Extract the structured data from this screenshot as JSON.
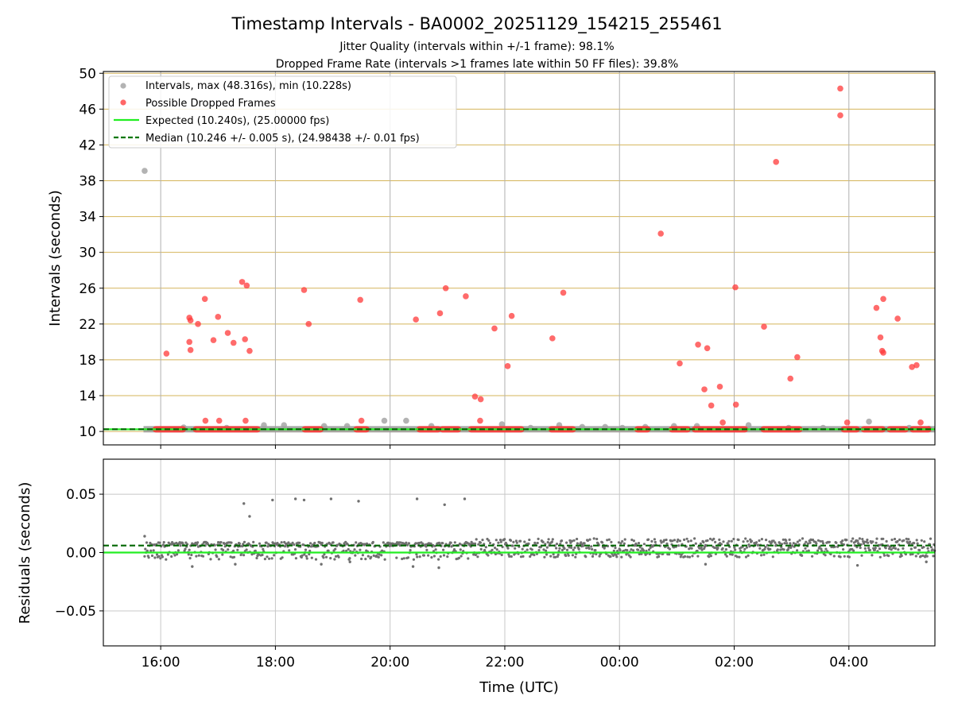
{
  "chart_data": [
    {
      "type": "scatter",
      "title": "Timestamp Intervals - BA0002_20251129_154215_255461",
      "subtitle_1": "Jitter Quality (intervals within +/-1 frame): 98.1%",
      "subtitle_2": "Dropped Frame Rate (intervals >1 frames late within 50 FF files): 39.8%",
      "ylabel": "Intervals (seconds)",
      "ylim": [
        8.5,
        50.2
      ],
      "xlim_hours": [
        15.0,
        29.5
      ],
      "yticks": [
        10,
        14,
        18,
        22,
        26,
        30,
        34,
        38,
        42,
        46,
        50
      ],
      "ytick_labels": [
        "10",
        "14",
        "18",
        "22",
        "26",
        "30",
        "34",
        "38",
        "42",
        "46",
        "50"
      ],
      "horizontal_grid": "goldenrod",
      "legend_position": "top-left",
      "legend": [
        "Intervals, max (48.316s), min (10.228s)",
        "Possible Dropped Frames",
        "Expected (10.240s), (25.00000 fps)",
        "Median (10.246 +/- 0.005 s), (24.98438 +/- 0.01 fps)"
      ],
      "expected_line": 10.24,
      "median_line": 10.246,
      "intervals_gray": [
        [
          15.72,
          39.1
        ],
        [
          16.4,
          10.45
        ],
        [
          17.15,
          10.4
        ],
        [
          17.8,
          10.7
        ],
        [
          18.15,
          10.7
        ],
        [
          18.85,
          10.6
        ],
        [
          19.25,
          10.6
        ],
        [
          19.9,
          11.2
        ],
        [
          20.28,
          11.2
        ],
        [
          20.72,
          10.6
        ],
        [
          21.95,
          10.8
        ],
        [
          22.45,
          10.4
        ],
        [
          22.95,
          10.7
        ],
        [
          23.35,
          10.5
        ],
        [
          23.75,
          10.5
        ],
        [
          24.05,
          10.4
        ],
        [
          24.45,
          10.5
        ],
        [
          24.95,
          10.6
        ],
        [
          25.35,
          10.6
        ],
        [
          26.25,
          10.7
        ],
        [
          26.95,
          10.4
        ],
        [
          27.55,
          10.4
        ],
        [
          28.35,
          11.1
        ],
        [
          29.05,
          10.4
        ],
        [
          29.4,
          10.3
        ]
      ],
      "dropped_frames": [
        [
          16.1,
          18.7
        ],
        [
          16.5,
          22.7
        ],
        [
          16.52,
          22.4
        ],
        [
          16.5,
          20.0
        ],
        [
          16.52,
          19.1
        ],
        [
          16.65,
          22.0
        ],
        [
          16.77,
          24.8
        ],
        [
          16.78,
          11.2
        ],
        [
          16.92,
          20.2
        ],
        [
          17.0,
          22.8
        ],
        [
          17.02,
          11.2
        ],
        [
          17.17,
          21.0
        ],
        [
          17.27,
          19.9
        ],
        [
          17.42,
          26.7
        ],
        [
          17.5,
          26.3
        ],
        [
          17.47,
          20.3
        ],
        [
          17.48,
          11.2
        ],
        [
          17.55,
          19.0
        ],
        [
          18.5,
          25.8
        ],
        [
          18.58,
          22.0
        ],
        [
          19.48,
          24.7
        ],
        [
          19.5,
          11.2
        ],
        [
          20.45,
          22.5
        ],
        [
          20.87,
          23.2
        ],
        [
          20.97,
          26.0
        ],
        [
          21.32,
          25.1
        ],
        [
          21.48,
          13.9
        ],
        [
          21.58,
          13.6
        ],
        [
          21.57,
          11.2
        ],
        [
          21.82,
          21.5
        ],
        [
          22.05,
          17.3
        ],
        [
          22.12,
          22.9
        ],
        [
          22.83,
          20.4
        ],
        [
          23.02,
          25.5
        ],
        [
          24.72,
          32.1
        ],
        [
          25.05,
          17.6
        ],
        [
          25.37,
          19.7
        ],
        [
          25.53,
          19.3
        ],
        [
          25.48,
          14.7
        ],
        [
          25.6,
          12.9
        ],
        [
          25.75,
          15.0
        ],
        [
          25.8,
          11.0
        ],
        [
          26.02,
          26.1
        ],
        [
          26.03,
          13.0
        ],
        [
          26.52,
          21.7
        ],
        [
          26.73,
          40.1
        ],
        [
          26.98,
          15.9
        ],
        [
          27.1,
          18.3
        ],
        [
          27.85,
          48.3
        ],
        [
          27.85,
          45.3
        ],
        [
          27.97,
          11.0
        ],
        [
          28.48,
          23.8
        ],
        [
          28.55,
          20.5
        ],
        [
          28.6,
          24.8
        ],
        [
          28.58,
          19.0
        ],
        [
          28.6,
          18.8
        ],
        [
          28.85,
          22.6
        ],
        [
          29.1,
          17.2
        ],
        [
          29.18,
          17.4
        ],
        [
          29.25,
          11.0
        ]
      ],
      "dropped_bands_at_10_25": [
        [
          15.9,
          16.4
        ],
        [
          16.6,
          17.7
        ],
        [
          18.5,
          18.8
        ],
        [
          19.4,
          19.6
        ],
        [
          20.5,
          20.85
        ],
        [
          20.9,
          21.2
        ],
        [
          21.4,
          22.3
        ],
        [
          22.8,
          23.2
        ],
        [
          24.3,
          24.5
        ],
        [
          24.9,
          25.2
        ],
        [
          25.3,
          26.2
        ],
        [
          26.5,
          27.15
        ],
        [
          27.9,
          28.15
        ],
        [
          28.25,
          28.6
        ],
        [
          28.7,
          29.0
        ],
        [
          29.1,
          29.4
        ]
      ],
      "gray_band_at_10_25": [
        15.7,
        29.5
      ]
    },
    {
      "type": "scatter",
      "ylabel": "Residuals (seconds)",
      "xlabel": "Time (UTC)",
      "ylim": [
        -0.08,
        0.08
      ],
      "yticks": [
        -0.05,
        0.0,
        0.05
      ],
      "ytick_labels": [
        "−0.05",
        "0.00",
        "0.05"
      ],
      "xticks_hours": [
        16,
        18,
        20,
        22,
        24,
        26,
        28
      ],
      "xtick_labels": [
        "16:00",
        "18:00",
        "20:00",
        "22:00",
        "00:00",
        "02:00",
        "04:00"
      ],
      "expected_line": 0.0,
      "median_line": 0.006,
      "outliers": [
        [
          15.72,
          0.014
        ],
        [
          17.45,
          0.042
        ],
        [
          17.55,
          0.031
        ],
        [
          17.95,
          0.045
        ],
        [
          18.35,
          0.046
        ],
        [
          18.5,
          0.045
        ],
        [
          18.97,
          0.046
        ],
        [
          19.45,
          0.044
        ],
        [
          20.47,
          0.046
        ],
        [
          20.95,
          0.041
        ],
        [
          21.3,
          0.046
        ],
        [
          16.55,
          -0.012
        ],
        [
          17.3,
          -0.01
        ],
        [
          18.8,
          -0.01
        ],
        [
          19.3,
          -0.008
        ],
        [
          20.4,
          -0.012
        ],
        [
          20.85,
          -0.013
        ],
        [
          25.5,
          -0.01
        ],
        [
          28.15,
          -0.011
        ],
        [
          29.35,
          -0.008
        ]
      ]
    }
  ]
}
